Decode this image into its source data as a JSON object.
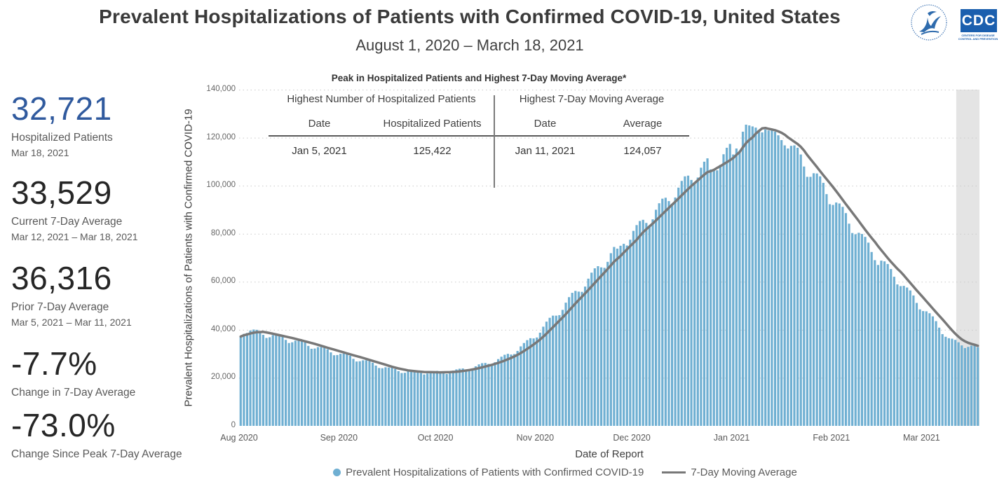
{
  "header": {
    "title": "Prevalent Hospitalizations of Patients with Confirmed COVID-19, United States",
    "subtitle": "August 1, 2020 – March 18, 2021"
  },
  "logos": {
    "cdc_label": "CDC",
    "cdc_tagline": "CENTERS FOR DISEASE CONTROL AND PREVENTION"
  },
  "stats": [
    {
      "value": "32,721",
      "label": "Hospitalized Patients",
      "sublabel": "Mar 18, 2021"
    },
    {
      "value": "33,529",
      "label": "Current 7-Day Average",
      "sublabel": "Mar 12, 2021 – Mar 18, 2021"
    },
    {
      "value": "36,316",
      "label": "Prior 7-Day Average",
      "sublabel": "Mar 5, 2021 – Mar 11, 2021"
    },
    {
      "value": "-7.7%",
      "label": "Change in 7-Day Average",
      "sublabel": ""
    },
    {
      "value": "-73.0%",
      "label": "Change Since Peak 7-Day Average",
      "sublabel": ""
    }
  ],
  "peak_table": {
    "title": "Peak in Hospitalized Patients and Highest 7-Day Moving Average*",
    "groups": [
      {
        "heading": "Highest Number of Hospitalized Patients",
        "columns": [
          "Date",
          "Hospitalized Patients"
        ],
        "row": [
          "Jan 5, 2021",
          "125,422"
        ]
      },
      {
        "heading": "Highest 7-Day Moving Average",
        "columns": [
          "Date",
          "Average"
        ],
        "row": [
          "Jan 11, 2021",
          "124,057"
        ]
      }
    ]
  },
  "chart_data": {
    "type": "bar",
    "title": "",
    "xlabel": "Date of Report",
    "ylabel": "Prevalent Hospitalizations of Patients with Confirmed COVID-19",
    "x_start": "Aug 1, 2020",
    "x_end": "Mar 18, 2021",
    "ylim": [
      0,
      140000
    ],
    "ytick_values": [
      0,
      20000,
      40000,
      60000,
      80000,
      100000,
      120000,
      140000
    ],
    "ytick_labels": [
      "0",
      "20,000",
      "40,000",
      "60,000",
      "80,000",
      "100,000",
      "120,000",
      "140,000"
    ],
    "month_ticks": [
      {
        "label": "Aug 2020",
        "day": 0
      },
      {
        "label": "Sep 2020",
        "day": 31
      },
      {
        "label": "Oct 2020",
        "day": 61
      },
      {
        "label": "Nov 2020",
        "day": 92
      },
      {
        "label": "Dec 2020",
        "day": 122
      },
      {
        "label": "Jan 2021",
        "day": 153
      },
      {
        "label": "Feb 2021",
        "day": 184
      },
      {
        "label": "Mar 2021",
        "day": 212
      }
    ],
    "grid_color": "#c9c9c9",
    "shaded_recent_window": {
      "start_day": 223,
      "end_day": 229,
      "color": "#e4e4e4"
    },
    "series": [
      {
        "name": "Prevalent Hospitalizations of Patients with Confirmed COVID-19",
        "type": "bar",
        "color": "#6fafd2",
        "note": "daily values estimated from gridlines, Aug 1 2020 - Mar 18 2021; peak Jan 5 2021 = 125,422; last value Mar 18 2021 = 32,721",
        "values": [
          37200,
          38300,
          38700,
          39700,
          40100,
          40000,
          39300,
          37900,
          36600,
          36900,
          37800,
          38000,
          37900,
          37200,
          35800,
          34500,
          34800,
          35500,
          35700,
          35500,
          34700,
          33300,
          32100,
          32200,
          32800,
          32800,
          32600,
          31900,
          30600,
          29400,
          29500,
          30000,
          30100,
          29800,
          29200,
          27900,
          26800,
          26900,
          27300,
          27300,
          27000,
          26300,
          25100,
          24100,
          24000,
          24400,
          24300,
          24200,
          23700,
          22800,
          22000,
          22100,
          22700,
          23000,
          23100,
          22800,
          22000,
          21400,
          21800,
          22400,
          22800,
          22900,
          22700,
          22100,
          21600,
          22100,
          23000,
          23500,
          23800,
          23900,
          23400,
          23100,
          23700,
          24800,
          25600,
          26100,
          26200,
          25800,
          25600,
          26500,
          27800,
          28800,
          29600,
          30000,
          29700,
          29900,
          31200,
          33100,
          34500,
          35700,
          36500,
          36400,
          36800,
          38800,
          41300,
          43400,
          45000,
          45900,
          45900,
          46100,
          48300,
          51300,
          53600,
          55400,
          56200,
          55900,
          55800,
          58000,
          61300,
          63800,
          65600,
          66500,
          66000,
          65800,
          68300,
          71900,
          74500,
          73800,
          75000,
          75800,
          75100,
          77500,
          81200,
          83600,
          85300,
          85800,
          84500,
          83500,
          86000,
          90000,
          92700,
          94600,
          95000,
          93600,
          92400,
          95100,
          99200,
          102000,
          103900,
          104200,
          102400,
          100800,
          103400,
          107500,
          110000,
          111400,
          106800,
          106300,
          106400,
          108700,
          113100,
          115800,
          117400,
          113000,
          115500,
          114500,
          122500,
          125422,
          125100,
          124700,
          124200,
          123200,
          122200,
          123400,
          123000,
          123300,
          122500,
          121000,
          119000,
          116800,
          115500,
          116600,
          116800,
          115800,
          113000,
          108000,
          103700,
          103700,
          105200,
          105100,
          103900,
          101200,
          96500,
          92300,
          92000,
          93000,
          92600,
          91200,
          88600,
          84200,
          80300,
          79800,
          80400,
          79900,
          78700,
          76300,
          72400,
          69000,
          67000,
          68800,
          68500,
          67400,
          65300,
          62100,
          58900,
          58200,
          58300,
          57600,
          56400,
          54300,
          51200,
          48500,
          47800,
          47700,
          46900,
          45600,
          43600,
          40900,
          38200,
          37100,
          36500,
          36300,
          35800,
          34800,
          33500,
          32400,
          32900,
          33400,
          33600,
          32721
        ]
      },
      {
        "name": "7-Day Moving Average",
        "type": "line",
        "color": "#787878",
        "derived_from": "trailing 7-day mean of the bar series; highest value 124,057 on Jan 11, 2021"
      }
    ],
    "legend": [
      {
        "label": "Prevalent Hospitalizations of Patients with Confirmed COVID-19",
        "marker": "circle",
        "color": "#6fafd2"
      },
      {
        "label": "7-Day Moving Average",
        "marker": "line",
        "color": "#787878"
      }
    ]
  }
}
